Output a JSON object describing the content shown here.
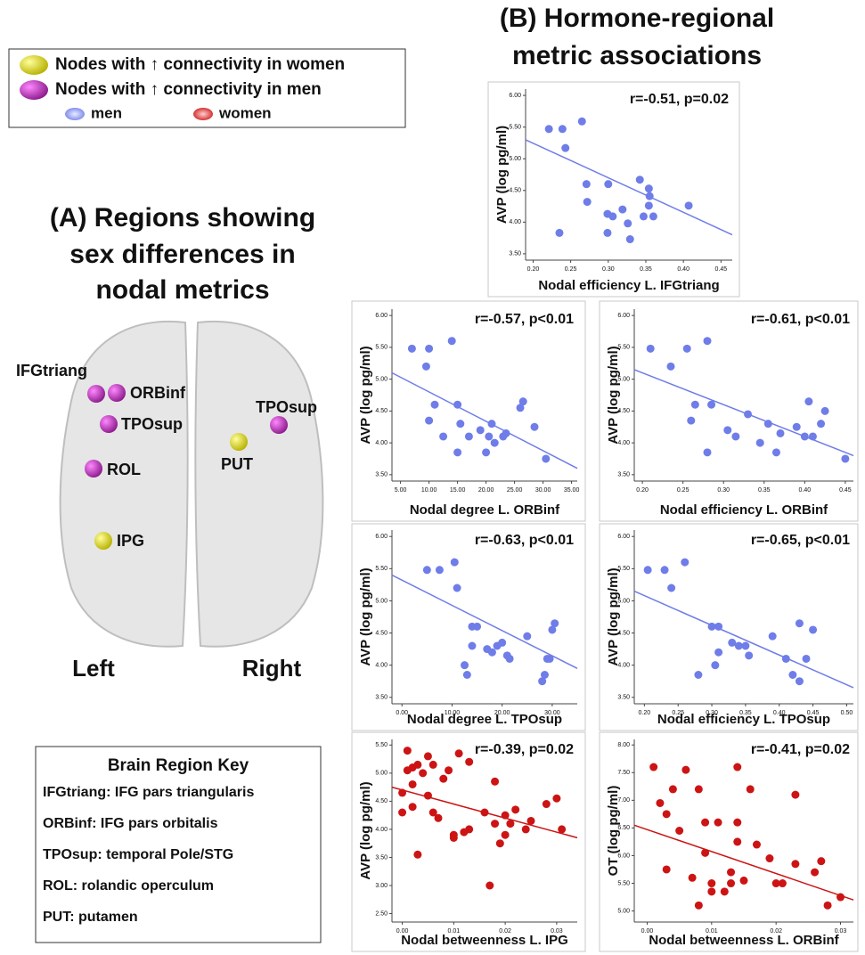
{
  "legend": {
    "items": [
      "Nodes with ↑ connectivity in women",
      "Nodes with ↑ connectivity in men",
      "men",
      "women"
    ]
  },
  "panel_a": {
    "title": [
      "(A) Regions showing",
      "sex differences in",
      "nodal metrics"
    ],
    "nodes": [
      "IFGtriang",
      "ORBinf",
      "TPOsup",
      "ROL",
      "IPG",
      "PUT",
      "TPOsup"
    ],
    "hemispheres": [
      "Left",
      "Right"
    ]
  },
  "key": {
    "title": "Brain Region Key",
    "rows": [
      "IFGtriang: IFG pars triangularis",
      "ORBinf: IFG pars orbitalis",
      "TPOsup: temporal Pole/STG",
      "ROL: rolandic operculum",
      "PUT: putamen"
    ]
  },
  "panel_b": {
    "title": [
      "(B) Hormone-regional",
      "metric associations"
    ]
  },
  "chart_data": [
    {
      "type": "scatter",
      "annotation": "r=-0.51, p=0.02",
      "x_label": "Nodal efficiency L. IFGtriang",
      "y_label": "AVP (log pg/ml)",
      "color": "#6f7de8",
      "x": [
        0.221,
        0.239,
        0.243,
        0.265,
        0.271,
        0.272,
        0.235,
        0.3,
        0.299,
        0.306,
        0.319,
        0.326,
        0.299,
        0.329,
        0.342,
        0.354,
        0.355,
        0.354,
        0.347,
        0.36,
        0.407
      ],
      "values": [
        5.47,
        5.47,
        5.17,
        5.59,
        4.6,
        4.32,
        3.83,
        4.6,
        4.13,
        4.09,
        4.2,
        3.98,
        3.83,
        3.73,
        4.67,
        4.53,
        4.41,
        4.26,
        4.09,
        4.09,
        4.26
      ],
      "fit": {
        "x": [
          0.19,
          0.465
        ],
        "y": [
          5.3,
          3.8
        ]
      },
      "xlim": [
        0.19,
        0.465
      ],
      "ylim": [
        3.4,
        6.1
      ],
      "xticks": [
        {
          "value": 0.2,
          "label": "0.20"
        },
        {
          "value": 0.25,
          "label": "0.25"
        },
        {
          "value": 0.3,
          "label": "0.30"
        },
        {
          "value": 0.35,
          "label": "0.35"
        },
        {
          "value": 0.4,
          "label": "0.40"
        },
        {
          "value": 0.45,
          "label": "0.45"
        }
      ],
      "yticks": [
        {
          "value": 3.5,
          "label": "3.50"
        },
        {
          "value": 4,
          "label": "4.00"
        },
        {
          "value": 4.5,
          "label": "4.50"
        },
        {
          "value": 5,
          "label": "5.00"
        },
        {
          "value": 5.5,
          "label": "5.50"
        },
        {
          "value": 6,
          "label": "6.00"
        }
      ]
    },
    {
      "type": "scatter",
      "annotation": "r=-0.57, p<0.01",
      "x_label": "Nodal degree L. ORBinf",
      "y_label": "AVP (log pg/ml)",
      "color": "#6f7de8",
      "x": [
        7,
        10,
        9.5,
        14,
        10,
        11,
        12.5,
        15,
        15.5,
        15,
        17,
        19,
        21,
        20.5,
        20,
        21.5,
        23,
        23.5,
        26,
        26.5,
        28.5,
        30.5
      ],
      "values": [
        5.48,
        5.48,
        5.2,
        5.6,
        4.35,
        4.6,
        4.1,
        4.6,
        4.3,
        3.85,
        4.1,
        4.2,
        4.3,
        4.1,
        3.85,
        4.0,
        4.1,
        4.15,
        4.55,
        4.65,
        4.25,
        3.75
      ],
      "fit": {
        "x": [
          3.5,
          36
        ],
        "y": [
          5.1,
          3.6
        ]
      },
      "xlim": [
        3.5,
        36
      ],
      "ylim": [
        3.4,
        6.1
      ],
      "xticks": [
        {
          "value": 5,
          "label": "5.00"
        },
        {
          "value": 10,
          "label": "10.00"
        },
        {
          "value": 15,
          "label": "15.00"
        },
        {
          "value": 20,
          "label": "20.00"
        },
        {
          "value": 25,
          "label": "25.00"
        },
        {
          "value": 30,
          "label": "30.00"
        },
        {
          "value": 35,
          "label": "35.00"
        }
      ],
      "yticks": [
        {
          "value": 3.5,
          "label": "3.50"
        },
        {
          "value": 4,
          "label": "4.00"
        },
        {
          "value": 4.5,
          "label": "4.50"
        },
        {
          "value": 5,
          "label": "5.00"
        },
        {
          "value": 5.5,
          "label": "5.50"
        },
        {
          "value": 6,
          "label": "6.00"
        }
      ]
    },
    {
      "type": "scatter",
      "annotation": "r=-0.61, p<0.01",
      "x_label": "Nodal efficiency L. ORBinf",
      "y_label": "AVP (log pg/ml)",
      "color": "#6f7de8",
      "x": [
        0.21,
        0.235,
        0.255,
        0.28,
        0.26,
        0.265,
        0.285,
        0.28,
        0.305,
        0.315,
        0.33,
        0.345,
        0.355,
        0.365,
        0.37,
        0.39,
        0.4,
        0.41,
        0.405,
        0.42,
        0.425,
        0.45
      ],
      "values": [
        5.48,
        5.2,
        5.48,
        5.6,
        4.35,
        4.6,
        4.6,
        3.85,
        4.2,
        4.1,
        4.45,
        4.0,
        4.3,
        3.85,
        4.15,
        4.25,
        4.1,
        4.1,
        4.65,
        4.3,
        4.5,
        3.75
      ],
      "fit": {
        "x": [
          0.19,
          0.46
        ],
        "y": [
          5.15,
          3.8
        ]
      },
      "xlim": [
        0.19,
        0.46
      ],
      "ylim": [
        3.4,
        6.1
      ],
      "xticks": [
        {
          "value": 0.2,
          "label": "0.20"
        },
        {
          "value": 0.25,
          "label": "0.25"
        },
        {
          "value": 0.3,
          "label": "0.30"
        },
        {
          "value": 0.35,
          "label": "0.35"
        },
        {
          "value": 0.4,
          "label": "0.40"
        },
        {
          "value": 0.45,
          "label": "0.45"
        }
      ],
      "yticks": [
        {
          "value": 3.5,
          "label": "3.50"
        },
        {
          "value": 4,
          "label": "4.00"
        },
        {
          "value": 4.5,
          "label": "4.50"
        },
        {
          "value": 5,
          "label": "5.00"
        },
        {
          "value": 5.5,
          "label": "5.50"
        },
        {
          "value": 6,
          "label": "6.00"
        }
      ]
    },
    {
      "type": "scatter",
      "annotation": "r=-0.63, p<0.01",
      "x_label": "Nodal degree L. TPOsup",
      "y_label": "AVP (log pg/ml)",
      "color": "#6f7de8",
      "x": [
        5,
        7.5,
        10.5,
        11,
        14,
        15,
        14,
        12.5,
        13,
        17,
        18,
        19,
        20,
        21,
        21.5,
        25,
        28,
        28.5,
        29,
        29.5,
        30,
        30.5
      ],
      "values": [
        5.48,
        5.48,
        5.6,
        5.2,
        4.6,
        4.6,
        4.3,
        4.0,
        3.85,
        4.25,
        4.2,
        4.3,
        4.35,
        4.15,
        4.1,
        4.45,
        3.75,
        3.85,
        4.1,
        4.1,
        4.55,
        4.65
      ],
      "fit": {
        "x": [
          -2,
          35
        ],
        "y": [
          5.4,
          3.95
        ]
      },
      "xlim": [
        -2,
        35
      ],
      "ylim": [
        3.4,
        6.1
      ],
      "xticks": [
        {
          "value": 0,
          "label": "0.00"
        },
        {
          "value": 10,
          "label": "10.00"
        },
        {
          "value": 20,
          "label": "20.00"
        },
        {
          "value": 30,
          "label": "30.00"
        }
      ],
      "yticks": [
        {
          "value": 3.5,
          "label": "3.50"
        },
        {
          "value": 4,
          "label": "4.00"
        },
        {
          "value": 4.5,
          "label": "4.50"
        },
        {
          "value": 5,
          "label": "5.00"
        },
        {
          "value": 5.5,
          "label": "5.50"
        },
        {
          "value": 6,
          "label": "6.00"
        }
      ]
    },
    {
      "type": "scatter",
      "annotation": "r=-0.65, p<0.01",
      "x_label": "Nodal efficiency L. TPOsup",
      "y_label": "AVP (log pg/ml)",
      "color": "#6f7de8",
      "x": [
        0.205,
        0.23,
        0.24,
        0.26,
        0.28,
        0.3,
        0.305,
        0.31,
        0.31,
        0.33,
        0.34,
        0.35,
        0.355,
        0.39,
        0.41,
        0.42,
        0.43,
        0.43,
        0.44,
        0.45
      ],
      "values": [
        5.48,
        5.48,
        5.2,
        5.6,
        3.85,
        4.6,
        4.0,
        4.6,
        4.2,
        4.35,
        4.3,
        4.3,
        4.15,
        4.45,
        4.1,
        3.85,
        3.75,
        4.65,
        4.1,
        4.55
      ],
      "fit": {
        "x": [
          0.185,
          0.51
        ],
        "y": [
          5.15,
          3.65
        ]
      },
      "xlim": [
        0.185,
        0.51
      ],
      "ylim": [
        3.4,
        6.1
      ],
      "xticks": [
        {
          "value": 0.2,
          "label": "0.20"
        },
        {
          "value": 0.25,
          "label": "0.25"
        },
        {
          "value": 0.3,
          "label": "0.30"
        },
        {
          "value": 0.35,
          "label": "0.35"
        },
        {
          "value": 0.4,
          "label": "0.40"
        },
        {
          "value": 0.45,
          "label": "0.45"
        },
        {
          "value": 0.5,
          "label": "0.50"
        }
      ],
      "yticks": [
        {
          "value": 3.5,
          "label": "3.50"
        },
        {
          "value": 4,
          "label": "4.00"
        },
        {
          "value": 4.5,
          "label": "4.50"
        },
        {
          "value": 5,
          "label": "5.00"
        },
        {
          "value": 5.5,
          "label": "5.50"
        },
        {
          "value": 6,
          "label": "6.00"
        }
      ]
    },
    {
      "type": "scatter",
      "annotation": "r=-0.39, p=0.02",
      "x_label": "Nodal betweenness L. IPG",
      "y_label": "AVP (log pg/ml)",
      "color": "#cc1414",
      "x": [
        0.0,
        0.0,
        0.001,
        0.001,
        0.002,
        0.002,
        0.003,
        0.002,
        0.004,
        0.005,
        0.005,
        0.006,
        0.006,
        0.007,
        0.008,
        0.009,
        0.003,
        0.011,
        0.01,
        0.01,
        0.012,
        0.013,
        0.013,
        0.016,
        0.017,
        0.018,
        0.018,
        0.019,
        0.02,
        0.02,
        0.022,
        0.021,
        0.024,
        0.025,
        0.028,
        0.03,
        0.031
      ],
      "values": [
        4.65,
        4.3,
        5.05,
        5.4,
        5.1,
        4.8,
        5.15,
        4.4,
        5.0,
        5.3,
        4.6,
        5.15,
        4.3,
        4.2,
        4.9,
        5.05,
        3.55,
        5.35,
        3.85,
        3.9,
        3.95,
        4.0,
        5.2,
        4.3,
        3.0,
        4.85,
        4.1,
        3.75,
        3.9,
        4.25,
        4.35,
        4.1,
        4.0,
        4.15,
        4.45,
        4.55,
        4.0
      ],
      "fit": {
        "x": [
          -0.002,
          0.034
        ],
        "y": [
          4.75,
          3.85
        ]
      },
      "xlim": [
        -0.002,
        0.034
      ],
      "ylim": [
        2.35,
        5.6
      ],
      "xticks": [
        {
          "value": 0,
          "label": "0.00"
        },
        {
          "value": 0.01,
          "label": "0.01"
        },
        {
          "value": 0.02,
          "label": "0.02"
        },
        {
          "value": 0.03,
          "label": "0.03"
        }
      ],
      "yticks": [
        {
          "value": 2.5,
          "label": "2.50"
        },
        {
          "value": 3,
          "label": "3.00"
        },
        {
          "value": 3.5,
          "label": "3.50"
        },
        {
          "value": 4,
          "label": "4.00"
        },
        {
          "value": 4.5,
          "label": "4.50"
        },
        {
          "value": 5,
          "label": "5.00"
        },
        {
          "value": 5.5,
          "label": "5.50"
        }
      ]
    },
    {
      "type": "scatter",
      "annotation": "r=-0.41, p=0.02",
      "x_label": "Nodal betweenness L. ORBinf",
      "y_label": "OT (log pg/ml)",
      "color": "#cc1414",
      "x": [
        0.001,
        0.002,
        0.003,
        0.004,
        0.003,
        0.005,
        0.007,
        0.006,
        0.008,
        0.008,
        0.009,
        0.009,
        0.01,
        0.01,
        0.011,
        0.012,
        0.013,
        0.013,
        0.014,
        0.014,
        0.014,
        0.015,
        0.016,
        0.017,
        0.019,
        0.02,
        0.021,
        0.023,
        0.023,
        0.026,
        0.027,
        0.028,
        0.03
      ],
      "values": [
        7.6,
        6.95,
        6.75,
        7.2,
        5.75,
        6.45,
        5.6,
        7.55,
        7.2,
        5.1,
        6.6,
        6.05,
        5.35,
        5.5,
        6.6,
        5.35,
        5.5,
        5.7,
        7.6,
        6.6,
        6.25,
        5.55,
        7.2,
        6.2,
        5.95,
        5.5,
        5.5,
        7.1,
        5.85,
        5.7,
        5.9,
        5.1,
        5.25
      ],
      "fit": {
        "x": [
          -0.002,
          0.032
        ],
        "y": [
          6.55,
          5.2
        ]
      },
      "xlim": [
        -0.002,
        0.032
      ],
      "ylim": [
        4.8,
        8.1
      ],
      "xticks": [
        {
          "value": 0,
          "label": "0.00"
        },
        {
          "value": 0.01,
          "label": "0.01"
        },
        {
          "value": 0.02,
          "label": "0.02"
        },
        {
          "value": 0.03,
          "label": "0.03"
        }
      ],
      "yticks": [
        {
          "value": 5,
          "label": "5.00"
        },
        {
          "value": 5.5,
          "label": "5.50"
        },
        {
          "value": 6,
          "label": "6.00"
        },
        {
          "value": 6.5,
          "label": "6.50"
        },
        {
          "value": 7,
          "label": "7.00"
        },
        {
          "value": 7.5,
          "label": "7.50"
        },
        {
          "value": 8,
          "label": "8.00"
        }
      ]
    }
  ]
}
